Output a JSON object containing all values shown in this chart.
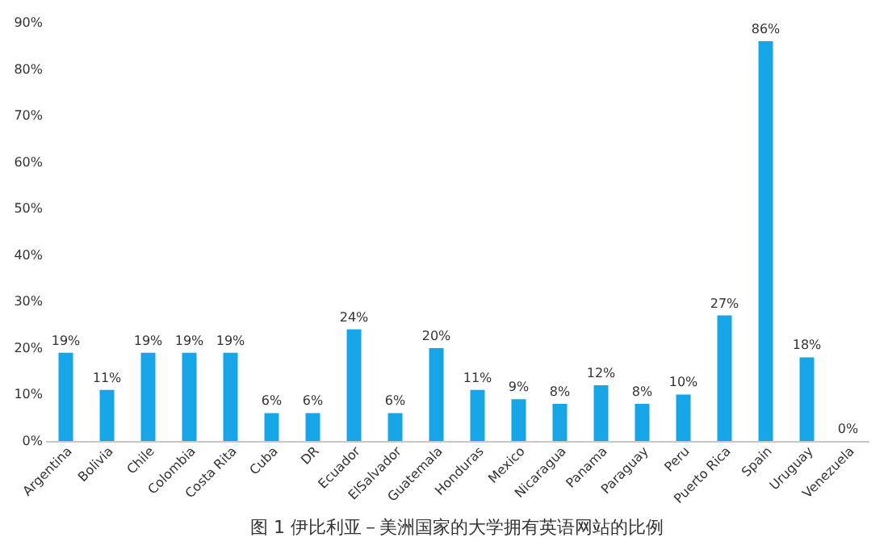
{
  "chart_data": {
    "type": "bar",
    "title": "图 1 伊比利亚－美洲国家的大学拥有英语网站的比例",
    "categories": [
      "Argentina",
      "Bolivia",
      "Chile",
      "Colombia",
      "Costa Rita",
      "Cuba",
      "DR",
      "Ecuador",
      "ElSalvador",
      "Guatemala",
      "Honduras",
      "Mexico",
      "Nicaragua",
      "Panama",
      "Paraguay",
      "Peru",
      "Puerto Rica",
      "Spain",
      "Uruguay",
      "Venezuela"
    ],
    "values": [
      19,
      11,
      19,
      19,
      19,
      6,
      6,
      24,
      6,
      20,
      11,
      9,
      8,
      12,
      8,
      10,
      27,
      86,
      18,
      0
    ],
    "value_labels": [
      "19%",
      "11%",
      "19%",
      "19%",
      "19%",
      "6%",
      "6%",
      "24%",
      "6%",
      "20%",
      "11%",
      "9%",
      "8%",
      "12%",
      "8%",
      "10%",
      "27%",
      "86%",
      "18%",
      "0%"
    ],
    "color": "#16a5e6",
    "ylim": [
      0,
      90
    ],
    "yticks": [
      {
        "value": 0,
        "label": "0%"
      },
      {
        "value": 10,
        "label": "10%"
      },
      {
        "value": 20,
        "label": "20%"
      },
      {
        "value": 30,
        "label": "30%"
      },
      {
        "value": 40,
        "label": "40%"
      },
      {
        "value": 50,
        "label": "50%"
      },
      {
        "value": 60,
        "label": "60%"
      },
      {
        "value": 70,
        "label": "70%"
      },
      {
        "value": 80,
        "label": "80%"
      },
      {
        "value": 90,
        "label": "90%"
      }
    ],
    "grid": false
  }
}
